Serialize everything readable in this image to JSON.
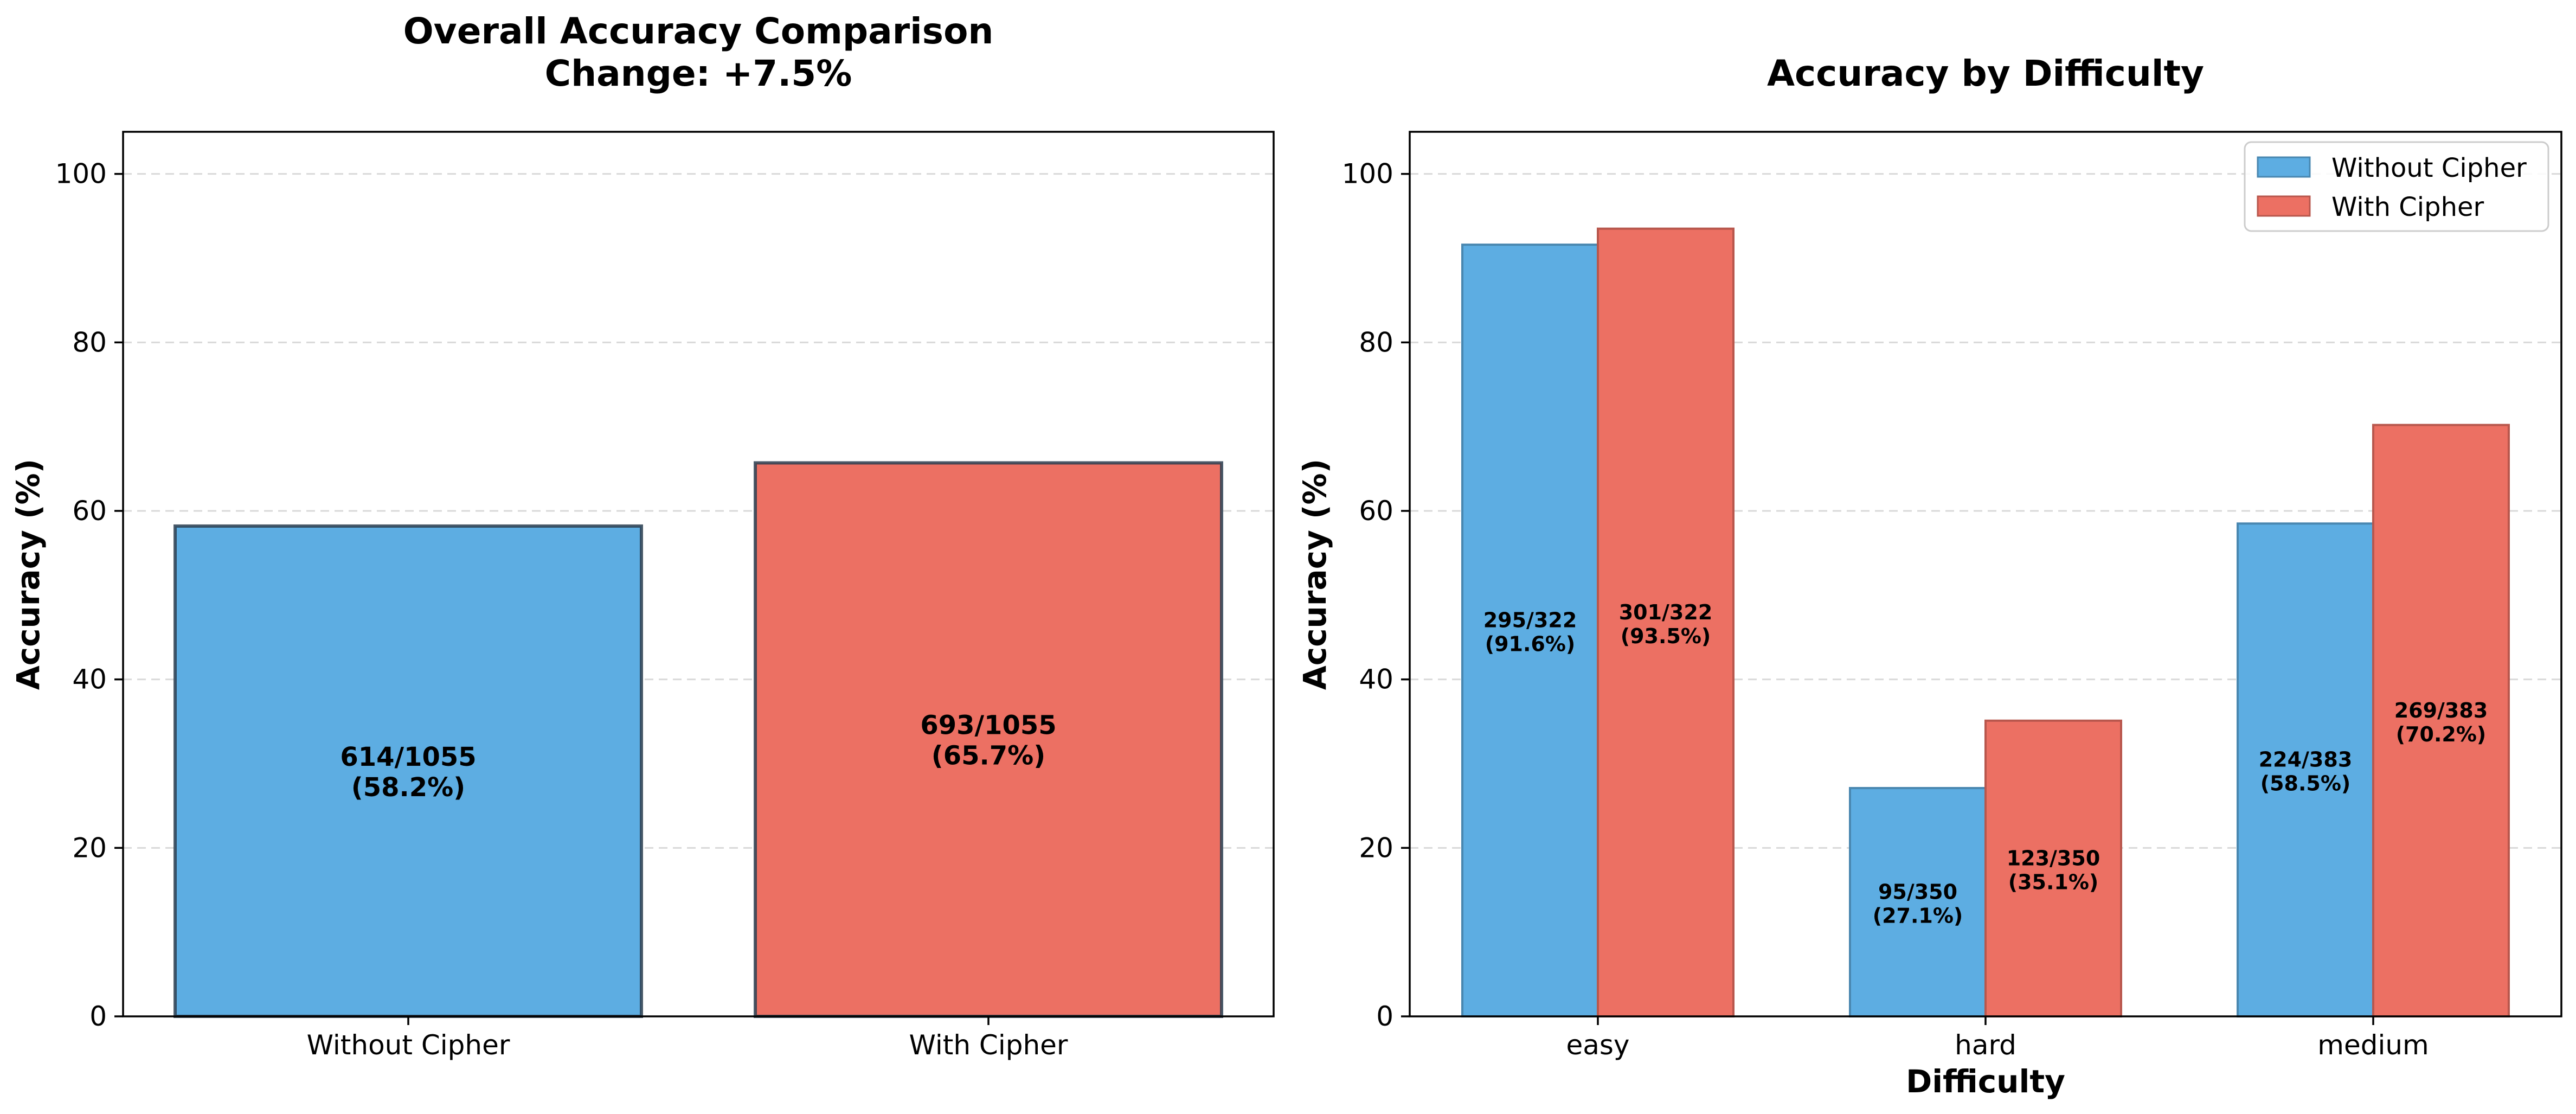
{
  "chart_data": [
    {
      "type": "bar",
      "title": "Overall Accuracy Comparison",
      "subtitle": "Change: +7.5%",
      "xlabel": "",
      "ylabel": "Accuracy (%)",
      "ylim": [
        0,
        105
      ],
      "yticks": [
        "0",
        "20",
        "40",
        "60",
        "80",
        "100"
      ],
      "grid": true,
      "categories": [
        "Without Cipher",
        "With Cipher"
      ],
      "values": [
        58.2,
        65.7
      ],
      "colors": [
        "#5dade2",
        "#ec7063"
      ],
      "bar_labels": [
        [
          "614/1055",
          "(58.2%)"
        ],
        [
          "693/1055",
          "(65.7%)"
        ]
      ]
    },
    {
      "type": "bar",
      "title": "Accuracy by Difficulty",
      "xlabel": "Difficulty",
      "ylabel": "Accuracy (%)",
      "ylim": [
        0,
        105
      ],
      "yticks": [
        "0",
        "20",
        "40",
        "60",
        "80",
        "100"
      ],
      "grid": true,
      "legend": "top-right",
      "categories": [
        "easy",
        "hard",
        "medium"
      ],
      "series": [
        {
          "name": "Without Cipher",
          "color": "#5dade2",
          "values": [
            91.6,
            27.1,
            58.5
          ],
          "bar_labels": [
            [
              "295/322",
              "(91.6%)"
            ],
            [
              "95/350",
              "(27.1%)"
            ],
            [
              "224/383",
              "(58.5%)"
            ]
          ]
        },
        {
          "name": "With Cipher",
          "color": "#ec7063",
          "values": [
            93.5,
            35.1,
            70.2
          ],
          "bar_labels": [
            [
              "301/322",
              "(93.5%)"
            ],
            [
              "123/350",
              "(35.1%)"
            ],
            [
              "269/383",
              "(70.2%)"
            ]
          ]
        }
      ]
    }
  ]
}
